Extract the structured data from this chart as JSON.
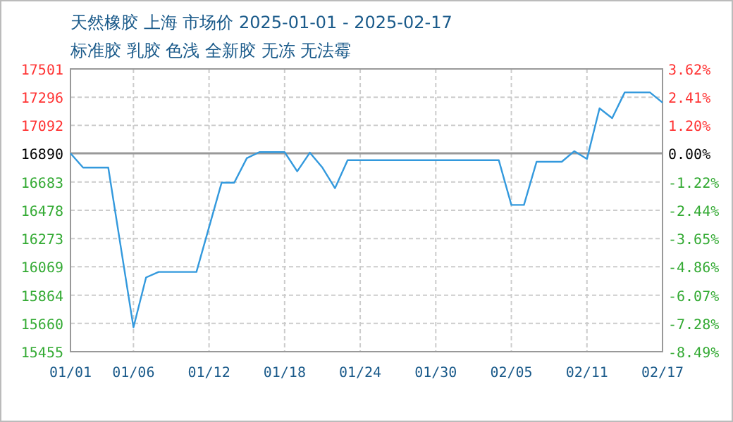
{
  "chart_data": {
    "type": "line",
    "title": "天然橡胶 上海 市场价 2025-01-01 - 2025-02-17",
    "subtitle": "标准胶 乳胶  色浅 全新胶 无冻 无法霉",
    "x": [
      "2025-01-01",
      "2025-01-02",
      "2025-01-04",
      "2025-01-06",
      "2025-01-07",
      "2025-01-08",
      "2025-01-11",
      "2025-01-13",
      "2025-01-14",
      "2025-01-15",
      "2025-01-16",
      "2025-01-18",
      "2025-01-19",
      "2025-01-20",
      "2025-01-21",
      "2025-01-22",
      "2025-01-23",
      "2025-02-04",
      "2025-02-05",
      "2025-02-06",
      "2025-02-07",
      "2025-02-09",
      "2025-02-10",
      "2025-02-11",
      "2025-02-12",
      "2025-02-13",
      "2025-02-14",
      "2025-02-16",
      "2025-02-17"
    ],
    "series": [
      {
        "color": "#3399dd",
        "values": [
          16890,
          16787,
          16787,
          15631,
          15992,
          16032,
          16032,
          16678,
          16678,
          16855,
          16899,
          16899,
          16760,
          16895,
          16787,
          16638,
          16841,
          16841,
          16517,
          16517,
          16829,
          16829,
          16906,
          16849,
          17216,
          17145,
          17331,
          17331,
          17257
        ]
      }
    ],
    "xlim": [
      "2025-01-01",
      "2025-02-17"
    ],
    "xticks": [
      {
        "value": "2025-01-01",
        "label": "01/01"
      },
      {
        "value": "2025-01-06",
        "label": "01/06"
      },
      {
        "value": "2025-01-12",
        "label": "01/12"
      },
      {
        "value": "2025-01-18",
        "label": "01/18"
      },
      {
        "value": "2025-01-24",
        "label": "01/24"
      },
      {
        "value": "2025-01-30",
        "label": "01/30"
      },
      {
        "value": "2025-02-05",
        "label": "02/05"
      },
      {
        "value": "2025-02-11",
        "label": "02/11"
      },
      {
        "value": "2025-02-17",
        "label": "02/17"
      }
    ],
    "ylim": [
      15455,
      17501
    ],
    "yticks": [
      15455,
      15660,
      15864,
      16069,
      16273,
      16478,
      16683,
      16890,
      17092,
      17296,
      17501
    ],
    "y2lim": [
      -8.49,
      3.62
    ],
    "y2ticks": [
      {
        "value": -8.49,
        "label": "-8.49%"
      },
      {
        "value": -7.28,
        "label": "-7.28%"
      },
      {
        "value": -6.07,
        "label": "-6.07%"
      },
      {
        "value": -4.86,
        "label": "-4.86%"
      },
      {
        "value": -3.65,
        "label": "-3.65%"
      },
      {
        "value": -2.44,
        "label": "-2.44%"
      },
      {
        "value": -1.22,
        "label": "-1.22%"
      },
      {
        "value": 0,
        "label": "0.00%"
      },
      {
        "value": 1.2,
        "label": "1.20%"
      },
      {
        "value": 2.41,
        "label": "2.41%"
      },
      {
        "value": 3.62,
        "label": "3.62%"
      }
    ],
    "ref_lines": [
      {
        "axis": "y",
        "value": 16890,
        "color": "#999999"
      }
    ],
    "grid": true,
    "marker": "none",
    "line_style": "solid"
  }
}
